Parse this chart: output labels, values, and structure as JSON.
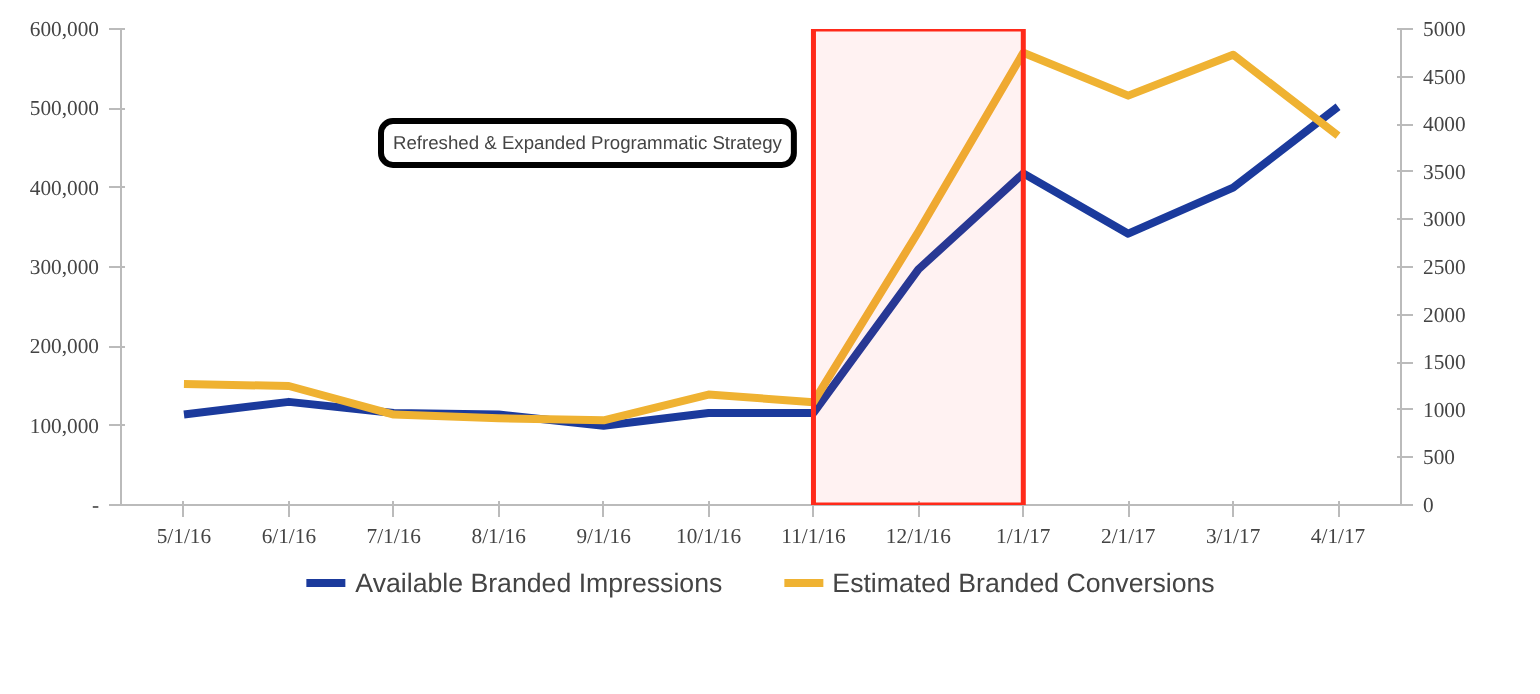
{
  "chart_data": {
    "type": "line",
    "categories": [
      "5/1/16",
      "6/1/16",
      "7/1/16",
      "8/1/16",
      "9/1/16",
      "10/1/16",
      "11/1/16",
      "12/1/16",
      "1/1/17",
      "2/1/17",
      "3/1/17",
      "4/1/17"
    ],
    "series": [
      {
        "name": "Available Branded Impressions",
        "color": "#1b3a9c",
        "values": [
          114000,
          130000,
          116000,
          114000,
          100000,
          116000,
          116000,
          297000,
          418000,
          342000,
          400000,
          502000
        ]
      },
      {
        "name": "Estimated Branded Conversions",
        "color": "#efb232",
        "axis": "y2",
        "values": [
          1270,
          1250,
          950,
          910,
          890,
          1160,
          1080,
          2870,
          4750,
          4300,
          4730,
          3880
        ]
      }
    ],
    "ylim": [
      0,
      600000
    ],
    "yticks": [
      {
        "value": 0,
        "label": "-"
      },
      {
        "value": 100000,
        "label": "100,000"
      },
      {
        "value": 200000,
        "label": "200,000"
      },
      {
        "value": 300000,
        "label": "300,000"
      },
      {
        "value": 400000,
        "label": "400,000"
      },
      {
        "value": 500000,
        "label": "500,000"
      },
      {
        "value": 600000,
        "label": "600,000"
      }
    ],
    "y2lim": [
      0,
      5000
    ],
    "y2ticks": [
      0,
      500,
      1000,
      1500,
      2000,
      2500,
      3000,
      3500,
      4000,
      4500,
      5000
    ],
    "annotations": [
      "Refreshed & Expanded Programmatic Strategy"
    ],
    "bands": [
      {
        "axis": "x",
        "from": "11/1/16",
        "to": "1/1/17",
        "color": "#ff2a1a"
      }
    ],
    "grid": false,
    "legend": "bottom",
    "marker": "none",
    "line_style": "solid"
  }
}
